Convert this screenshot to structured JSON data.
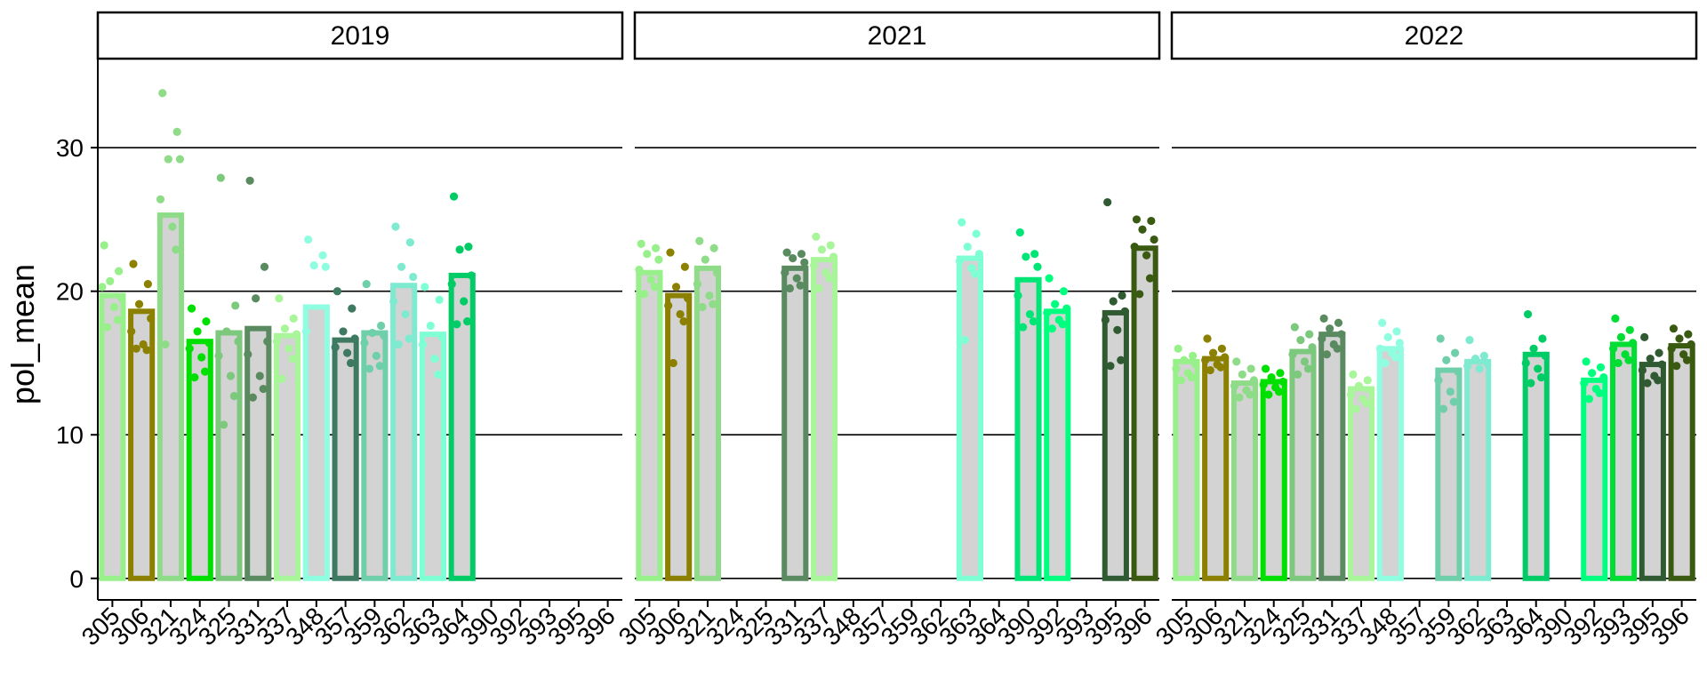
{
  "chart_data": {
    "type": "bar",
    "ylabel": "pol_mean",
    "xlabel": "",
    "ylim": [
      -1.5,
      36.2
    ],
    "yticks": [
      0,
      10,
      20,
      30
    ],
    "grid": "horizontal major lines",
    "categories": [
      "305",
      "306",
      "321",
      "324",
      "325",
      "331",
      "337",
      "348",
      "357",
      "359",
      "362",
      "363",
      "364",
      "390",
      "392",
      "393",
      "395",
      "396"
    ],
    "colors": {
      "305": "#98f08a",
      "306": "#8b8000",
      "321": "#8fdc88",
      "324": "#00e000",
      "325": "#7cc87c",
      "331": "#5a8a5f",
      "337": "#a9f59a",
      "348": "#8ffde0",
      "357": "#3d7a61",
      "359": "#6ecfaa",
      "362": "#7eead0",
      "363": "#7fffd4",
      "364": "#00cc66",
      "390": "#00e676",
      "392": "#00ff7f",
      "393": "#00dd33",
      "395": "#2f5a32",
      "396": "#3a5a12"
    },
    "bar_fill": "#d3d3d3",
    "panels": [
      {
        "label": "2019",
        "bars": {
          "305": 19.7,
          "306": 18.6,
          "321": 25.3,
          "324": 16.5,
          "325": 17.1,
          "331": 17.4,
          "337": 16.9,
          "348": 18.9,
          "357": 16.6,
          "359": 17.1,
          "362": 20.4,
          "363": 17.0,
          "364": 21.1
        },
        "points": {
          "305": [
            23.2,
            21.4,
            20.7,
            19.5,
            20.3,
            18.9,
            18.0,
            17.5
          ],
          "306": [
            21.9,
            20.5,
            19.1,
            18.1,
            17.2,
            16.3,
            15.9,
            16.0
          ],
          "321": [
            33.8,
            31.1,
            29.2,
            29.2,
            26.4,
            24.5,
            22.9,
            16.3
          ],
          "324": [
            18.8,
            17.9,
            17.2,
            16.4,
            16.0,
            15.4,
            14.4,
            14.0
          ],
          "325": [
            27.9,
            19.0,
            17.2,
            16.5,
            15.5,
            14.1,
            12.7,
            10.7
          ],
          "331": [
            27.7,
            21.7,
            19.5,
            16.5,
            15.6,
            14.1,
            13.2,
            12.6
          ],
          "337": [
            19.5,
            18.1,
            17.4,
            17.0,
            16.5,
            16.0,
            15.3,
            13.9
          ],
          "348": [
            23.6,
            22.5,
            21.8,
            21.7,
            17.2
          ],
          "357": [
            20.0,
            18.8,
            17.2,
            16.7,
            16.1,
            15.7,
            15.0
          ],
          "359": [
            20.5,
            17.6,
            17.1,
            16.9,
            16.4,
            15.5,
            14.8,
            14.6
          ],
          "362": [
            24.5,
            23.4,
            21.7,
            21.0,
            19.3,
            18.4,
            16.7,
            16.3
          ],
          "363": [
            20.3,
            19.4,
            17.6,
            16.8,
            16.3,
            15.3,
            14.2
          ],
          "364": [
            26.6,
            23.1,
            22.9,
            21.1,
            20.5,
            19.3,
            17.9,
            17.7
          ]
        }
      },
      {
        "label": "2021",
        "bars": {
          "305": 21.3,
          "306": 19.7,
          "321": 21.6,
          "331": 21.6,
          "337": 22.2,
          "363": 22.3,
          "390": 20.8,
          "392": 18.6,
          "395": 18.5,
          "396": 23.0
        },
        "points": {
          "305": [
            23.3,
            23.0,
            22.6,
            22.2,
            21.5,
            20.8,
            20.3,
            19.8
          ],
          "306": [
            22.7,
            21.7,
            20.3,
            19.5,
            19.0,
            18.4,
            17.9,
            15.0
          ],
          "321": [
            23.5,
            23.0,
            22.2,
            21.3,
            20.5,
            19.7,
            19.1,
            18.9
          ],
          "331": [
            22.7,
            22.6,
            22.3,
            22.0,
            21.3,
            20.9,
            20.4,
            20.2
          ],
          "337": [
            23.8,
            23.2,
            22.9,
            22.4,
            21.8,
            21.3,
            20.9,
            20.2
          ],
          "363": [
            24.8,
            24.0,
            23.1,
            22.6,
            22.1,
            21.6,
            21.2,
            16.6
          ],
          "390": [
            24.1,
            22.6,
            22.4,
            21.7,
            19.7,
            18.4,
            17.9,
            17.5
          ],
          "392": [
            20.9,
            20.0,
            19.1,
            18.8,
            18.5,
            18.0,
            17.7,
            17.4
          ],
          "395": [
            26.2,
            19.7,
            19.3,
            18.6,
            18.0,
            17.3,
            15.2,
            14.8
          ],
          "396": [
            25.0,
            24.9,
            24.3,
            23.6,
            23.1,
            22.5,
            20.9,
            19.8
          ]
        }
      },
      {
        "label": "2022",
        "bars": {
          "305": 15.1,
          "306": 15.3,
          "321": 13.6,
          "324": 13.7,
          "325": 15.8,
          "331": 17.0,
          "337": 13.2,
          "348": 16.0,
          "359": 14.5,
          "362": 15.1,
          "364": 15.6,
          "392": 13.8,
          "393": 16.3,
          "395": 14.9,
          "396": 16.2
        },
        "points": {
          "305": [
            16.0,
            15.5,
            15.2,
            14.9,
            14.6,
            14.3,
            14.0,
            13.8
          ],
          "306": [
            16.7,
            16.0,
            15.7,
            15.4,
            15.2,
            14.9,
            14.7,
            14.5
          ],
          "321": [
            15.1,
            14.6,
            14.2,
            13.8,
            13.4,
            13.1,
            12.8,
            12.6
          ],
          "324": [
            14.6,
            14.3,
            14.0,
            13.7,
            13.5,
            13.3,
            13.0,
            12.8
          ],
          "325": [
            17.5,
            17.0,
            16.6,
            16.1,
            15.6,
            15.1,
            14.6,
            14.2
          ],
          "331": [
            18.1,
            17.8,
            17.4,
            17.0,
            16.7,
            16.3,
            16.0,
            15.6
          ],
          "337": [
            14.2,
            13.8,
            13.4,
            13.1,
            12.8,
            12.5,
            12.2,
            11.8
          ],
          "348": [
            17.8,
            17.2,
            16.8,
            16.4,
            16.0,
            15.7,
            15.4,
            15.0
          ],
          "359": [
            16.7,
            15.7,
            15.2,
            14.4,
            13.8,
            13.0,
            12.3,
            11.8
          ],
          "362": [
            16.6,
            15.5,
            15.3,
            15.0,
            14.8,
            14.6
          ],
          "364": [
            18.4,
            16.7,
            16.0,
            15.5,
            15.0,
            14.6,
            14.0,
            13.6
          ],
          "392": [
            15.1,
            14.7,
            14.3,
            14.0,
            13.6,
            13.2,
            12.9,
            12.5
          ],
          "393": [
            18.1,
            17.3,
            16.8,
            16.4,
            16.0,
            15.6,
            15.2,
            15.0
          ],
          "395": [
            16.8,
            15.7,
            15.3,
            14.9,
            14.5,
            14.1,
            13.8,
            13.6
          ],
          "396": [
            17.4,
            17.0,
            16.7,
            16.3,
            16.0,
            15.6,
            15.2,
            14.8
          ]
        }
      }
    ]
  }
}
